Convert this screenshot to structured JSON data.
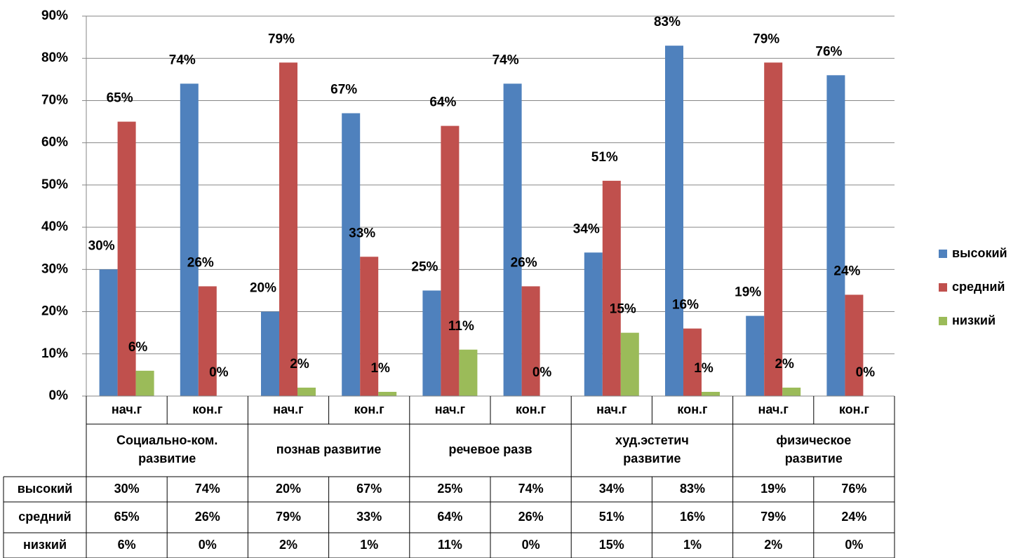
{
  "chart_data": {
    "type": "bar",
    "title": "",
    "xlabel": "",
    "ylabel": "",
    "ylim": [
      0,
      90
    ],
    "y_ticks": [
      "0%",
      "10%",
      "20%",
      "30%",
      "40%",
      "50%",
      "60%",
      "70%",
      "80%",
      "90%"
    ],
    "y_tick_values": [
      0,
      10,
      20,
      30,
      40,
      50,
      60,
      70,
      80,
      90
    ],
    "grid": "horizontal",
    "legend_placement": "right",
    "categories": [
      "нач.г",
      "кон.г",
      "нач.г",
      "кон.г",
      "нач.г",
      "кон.г",
      "нач.г",
      "кон.г",
      "нач.г",
      "кон.г"
    ],
    "groups": [
      "Социально-ком.\nразвитие",
      "познав развитие",
      "речевое разв",
      "худ.эстетич\nразвитие",
      "физическое\nразвитие"
    ],
    "series": [
      {
        "name": "высокий",
        "color": "#4f81bd",
        "values": [
          30,
          74,
          20,
          67,
          25,
          74,
          34,
          83,
          19,
          76
        ],
        "labels": [
          "30%",
          "74%",
          "20%",
          "67%",
          "25%",
          "74%",
          "34%",
          "83%",
          "19%",
          "76%"
        ]
      },
      {
        "name": "средний",
        "color": "#c0504d",
        "values": [
          65,
          26,
          79,
          33,
          64,
          26,
          51,
          16,
          79,
          24
        ],
        "labels": [
          "65%",
          "26%",
          "79%",
          "33%",
          "64%",
          "26%",
          "51%",
          "16%",
          "79%",
          "24%"
        ]
      },
      {
        "name": "низкий",
        "color": "#9bbb59",
        "values": [
          6,
          0,
          2,
          1,
          11,
          0,
          15,
          1,
          2,
          0
        ],
        "labels": [
          "6%",
          "0%",
          "2%",
          "1%",
          "11%",
          "0%",
          "15%",
          "1%",
          "2%",
          "0%"
        ]
      }
    ],
    "data_table": true
  }
}
